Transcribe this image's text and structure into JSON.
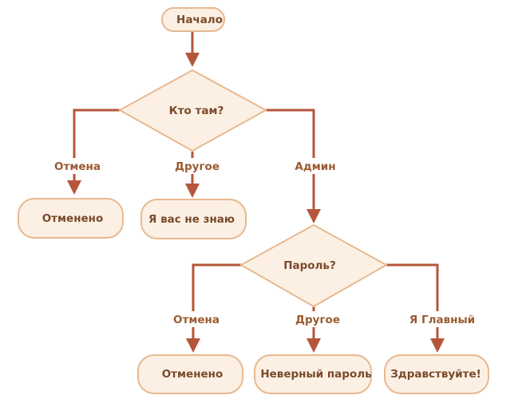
{
  "nodes": {
    "start": "Начало",
    "who": "Кто там?",
    "cancel1": "Отменено",
    "unknown": "Я вас не знаю",
    "password": "Пароль?",
    "cancel2": "Отменено",
    "wrong": "Неверный пароль",
    "hello": "Здравствуйте!"
  },
  "edges": {
    "who_cancel": "Отмена",
    "who_other": "Другое",
    "who_admin": "Админ",
    "pw_cancel": "Отмена",
    "pw_other": "Другое",
    "pw_main": "Я Главный"
  },
  "colors": {
    "node_fill": "#fcf0e4",
    "node_stroke": "#e7b990",
    "edge": "#b5563a",
    "text": "#7a4a2a"
  }
}
